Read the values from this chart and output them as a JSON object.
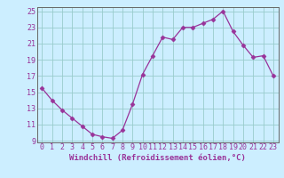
{
  "x": [
    0,
    1,
    2,
    3,
    4,
    5,
    6,
    7,
    8,
    9,
    10,
    11,
    12,
    13,
    14,
    15,
    16,
    17,
    18,
    19,
    20,
    21,
    22,
    23
  ],
  "y": [
    15.5,
    14.0,
    12.8,
    11.8,
    10.8,
    9.8,
    9.5,
    9.3,
    10.3,
    13.5,
    17.2,
    19.5,
    21.8,
    21.5,
    23.0,
    23.0,
    23.5,
    24.0,
    25.0,
    22.5,
    20.8,
    19.3,
    19.5,
    17.0
  ],
  "xlabel": "Windchill (Refroidissement éolien,°C)",
  "ylim": [
    9,
    25
  ],
  "xlim": [
    -0.5,
    23.5
  ],
  "yticks": [
    9,
    11,
    13,
    15,
    17,
    19,
    21,
    23,
    25
  ],
  "xticks": [
    0,
    1,
    2,
    3,
    4,
    5,
    6,
    7,
    8,
    9,
    10,
    11,
    12,
    13,
    14,
    15,
    16,
    17,
    18,
    19,
    20,
    21,
    22,
    23
  ],
  "line_color": "#993399",
  "marker": "D",
  "marker_size": 2.5,
  "bg_color": "#cceeff",
  "grid_color": "#99cccc",
  "spine_color": "#666666",
  "label_fontsize": 6.5,
  "tick_fontsize": 6.0
}
